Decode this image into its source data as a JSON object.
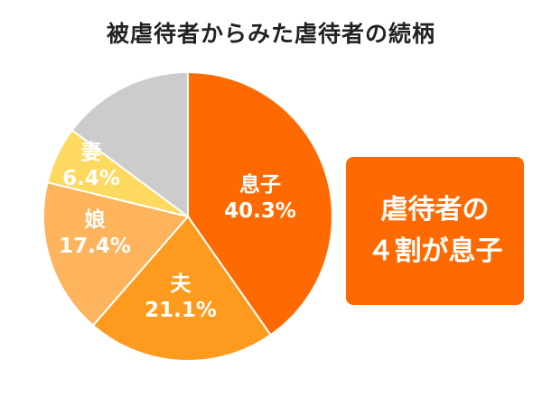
{
  "chart_data": {
    "type": "pie",
    "title": "被虐待者からみた虐待者の続柄",
    "slices": [
      {
        "label": "息子",
        "value_label": "40.3%",
        "value": 40.3,
        "color": "#ff6a00"
      },
      {
        "label": "夫",
        "value_label": "21.1%",
        "value": 21.1,
        "color": "#fe9b1f"
      },
      {
        "label": "娘",
        "value_label": "17.4%",
        "value": 17.4,
        "color": "#fdb45c"
      },
      {
        "label": "妻",
        "value_label": "6.4%",
        "value": 6.4,
        "color": "#fed95f"
      },
      {
        "label": "",
        "value_label": "",
        "value": 14.8,
        "color": "#cccccc"
      }
    ],
    "start_angle_deg": 0,
    "direction": "clockwise"
  },
  "callout": {
    "line1": "虐待者の",
    "line2": "４割が息子",
    "color": "#ff6a00"
  }
}
